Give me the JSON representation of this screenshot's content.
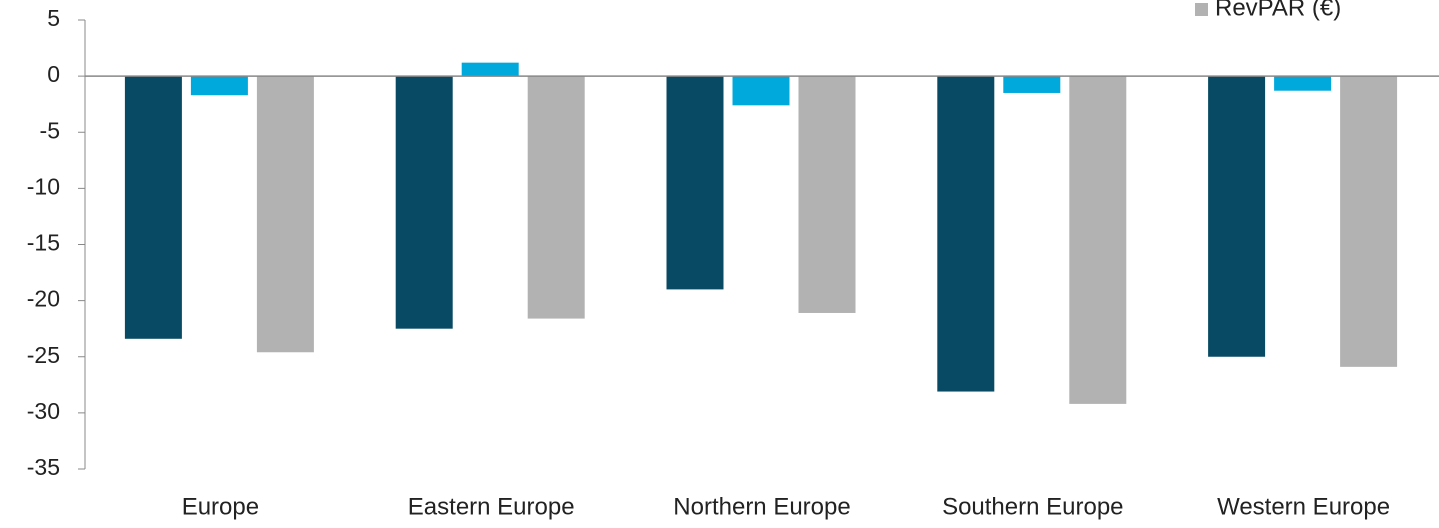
{
  "chart_data": {
    "type": "bar",
    "categories": [
      "Europe",
      "Eastern Europe",
      "Northern Europe",
      "Southern Europe",
      "Western Europe"
    ],
    "series": [
      {
        "color": "#084a63",
        "values": [
          -23.4,
          -22.5,
          -19.0,
          -28.1,
          -25.0
        ]
      },
      {
        "color": "#00a9dc",
        "values": [
          -1.7,
          1.2,
          -2.6,
          -1.5,
          -1.3
        ]
      },
      {
        "name": "RevPAR (€)",
        "color": "#b2b2b2",
        "values": [
          -24.6,
          -21.6,
          -21.1,
          -29.2,
          -25.9
        ]
      }
    ],
    "ylim": [
      -35,
      5
    ],
    "yticks": [
      -35,
      -30,
      -25,
      -20,
      -15,
      -10,
      -5,
      0,
      5
    ],
    "legend": "top-right"
  }
}
